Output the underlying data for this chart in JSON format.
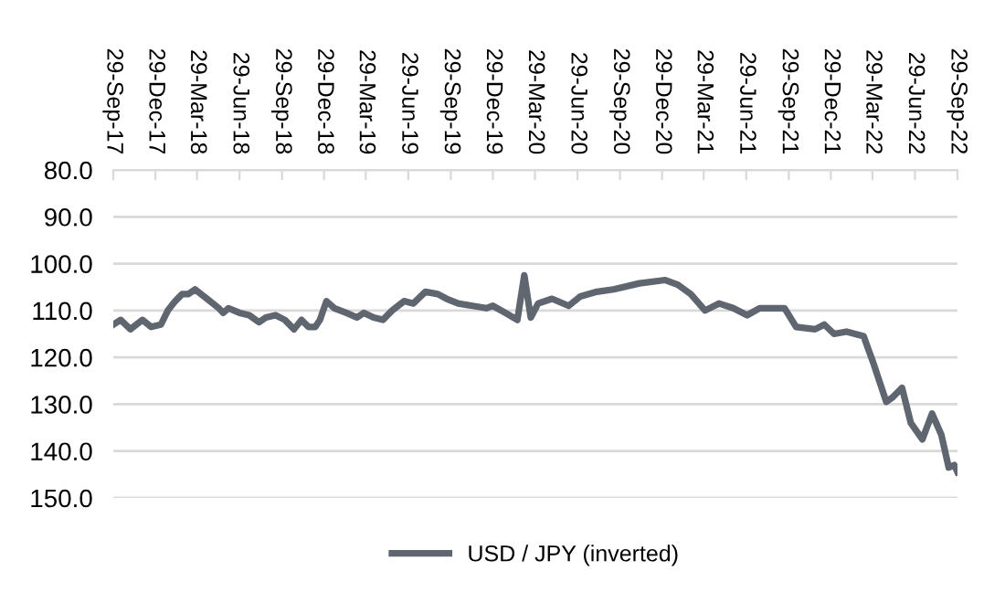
{
  "chart_data": {
    "type": "line",
    "legend": "bottom",
    "grid": "y",
    "marker": "none",
    "line_style": "solid",
    "xlim": [
      "2017-09-29",
      "2022-09-29"
    ],
    "ylim": [
      150,
      80
    ],
    "xticks": [
      {
        "value": "2017-09-29",
        "label": "29-Sep-17"
      },
      {
        "value": "2017-12-29",
        "label": "29-Dec-17"
      },
      {
        "value": "2018-03-29",
        "label": "29-Mar-18"
      },
      {
        "value": "2018-06-29",
        "label": "29-Jun-18"
      },
      {
        "value": "2018-09-29",
        "label": "29-Sep-18"
      },
      {
        "value": "2018-12-29",
        "label": "29-Dec-18"
      },
      {
        "value": "2019-03-29",
        "label": "29-Mar-19"
      },
      {
        "value": "2019-06-29",
        "label": "29-Jun-19"
      },
      {
        "value": "2019-09-29",
        "label": "29-Sep-19"
      },
      {
        "value": "2019-12-29",
        "label": "29-Dec-19"
      },
      {
        "value": "2020-03-29",
        "label": "29-Mar-20"
      },
      {
        "value": "2020-06-29",
        "label": "29-Jun-20"
      },
      {
        "value": "2020-09-29",
        "label": "29-Sep-20"
      },
      {
        "value": "2020-12-29",
        "label": "29-Dec-20"
      },
      {
        "value": "2021-03-29",
        "label": "29-Mar-21"
      },
      {
        "value": "2021-06-29",
        "label": "29-Jun-21"
      },
      {
        "value": "2021-09-29",
        "label": "29-Sep-21"
      },
      {
        "value": "2021-12-29",
        "label": "29-Dec-21"
      },
      {
        "value": "2022-03-29",
        "label": "29-Mar-22"
      },
      {
        "value": "2022-06-29",
        "label": "29-Jun-22"
      },
      {
        "value": "2022-09-29",
        "label": "29-Sep-22"
      }
    ],
    "yticks": [
      {
        "value": 80,
        "label": "80.0"
      },
      {
        "value": 90,
        "label": "90.0"
      },
      {
        "value": 100,
        "label": "100.0"
      },
      {
        "value": 110,
        "label": "110.0"
      },
      {
        "value": 120,
        "label": "120.0"
      },
      {
        "value": 130,
        "label": "130.0"
      },
      {
        "value": 140,
        "label": "140.0"
      },
      {
        "value": 150,
        "label": "150.0"
      }
    ],
    "series": [
      {
        "name": "USD / JPY (inverted)",
        "color": "#5f6670",
        "x": [
          "2017-09-29",
          "2017-10-15",
          "2017-11-05",
          "2017-12-01",
          "2017-12-20",
          "2018-01-10",
          "2018-01-25",
          "2018-02-10",
          "2018-02-25",
          "2018-03-10",
          "2018-03-25",
          "2018-04-20",
          "2018-05-15",
          "2018-05-25",
          "2018-06-05",
          "2018-06-29",
          "2018-07-20",
          "2018-08-10",
          "2018-08-25",
          "2018-09-15",
          "2018-10-05",
          "2018-10-25",
          "2018-11-10",
          "2018-11-25",
          "2018-12-10",
          "2018-12-20",
          "2019-01-03",
          "2019-01-20",
          "2019-02-15",
          "2019-03-10",
          "2019-03-25",
          "2019-04-15",
          "2019-05-05",
          "2019-05-25",
          "2019-06-20",
          "2019-07-10",
          "2019-08-05",
          "2019-09-01",
          "2019-09-20",
          "2019-10-15",
          "2019-11-15",
          "2019-12-15",
          "2019-12-29",
          "2020-01-25",
          "2020-02-20",
          "2020-03-06",
          "2020-03-20",
          "2020-04-05",
          "2020-05-05",
          "2020-06-10",
          "2020-07-05",
          "2020-08-10",
          "2020-09-15",
          "2020-11-10",
          "2021-01-05",
          "2021-02-01",
          "2021-03-01",
          "2021-04-01",
          "2021-05-01",
          "2021-06-01",
          "2021-07-01",
          "2021-07-28",
          "2021-09-20",
          "2021-10-15",
          "2021-11-25",
          "2021-12-15",
          "2022-01-05",
          "2022-02-01",
          "2022-03-10",
          "2022-04-01",
          "2022-04-28",
          "2022-05-12",
          "2022-06-01",
          "2022-06-20",
          "2022-07-15",
          "2022-08-05",
          "2022-08-25",
          "2022-09-10",
          "2022-09-22",
          "2022-09-29"
        ],
        "values": [
          113,
          112,
          114,
          112,
          113.5,
          113,
          110,
          108,
          106.5,
          106.5,
          105.5,
          107.5,
          109.5,
          110.5,
          109.5,
          110.5,
          111,
          112.5,
          111.5,
          111,
          112,
          114,
          112,
          113.5,
          113.5,
          112,
          108,
          109.5,
          110.5,
          111.5,
          110.5,
          111.5,
          112,
          110,
          108,
          108.5,
          106,
          106.5,
          107.5,
          108.5,
          109,
          109.5,
          109,
          110.5,
          112,
          102.5,
          111.5,
          108.5,
          107.5,
          109,
          107,
          106,
          105.5,
          104.2,
          103.5,
          104.5,
          106.5,
          110,
          108.5,
          109.5,
          111,
          109.5,
          109.5,
          113.5,
          114,
          113,
          115,
          114.5,
          115.5,
          121.5,
          129.5,
          128.5,
          126.5,
          134,
          137.5,
          132,
          136.5,
          143.5,
          143,
          144.5
        ]
      }
    ]
  }
}
